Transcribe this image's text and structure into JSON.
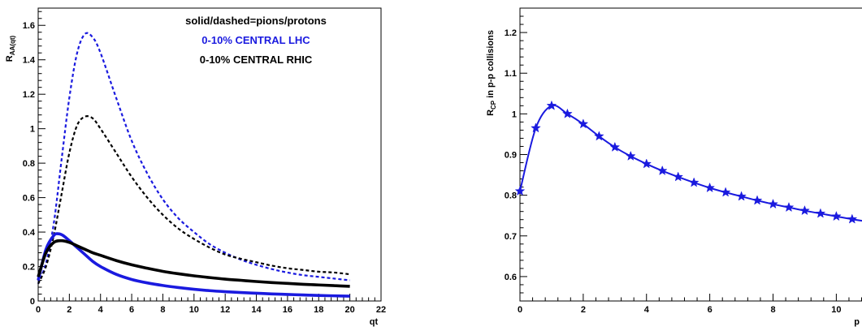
{
  "chart_data": [
    {
      "type": "line",
      "title": "",
      "xlabel": "qt",
      "ylabel": "R_AA(qt)",
      "ylabel_main": "R",
      "ylabel_sub": "AA(qt)",
      "xlim": [
        0,
        22
      ],
      "ylim": [
        0,
        1.7
      ],
      "xticks": [
        0,
        2,
        4,
        6,
        8,
        10,
        12,
        14,
        16,
        18,
        20,
        22
      ],
      "yticks": [
        0,
        0.2,
        0.4,
        0.6,
        0.8,
        1,
        1.2,
        1.4,
        1.6
      ],
      "legend": {
        "line1": "solid/dashed=pions/protons",
        "line2": "0-10% CENTRAL LHC",
        "line3": "0-10% CENTRAL RHIC",
        "color1": "#000000",
        "color2": "#1a1adf",
        "color3": "#000000",
        "placement": "top-right"
      },
      "series": [
        {
          "style": "dashed",
          "color": "#1a1adf",
          "x": [
            0,
            0.5,
            1,
            1.5,
            2,
            2.5,
            3,
            3.5,
            4,
            5,
            6,
            7,
            8,
            9,
            10,
            11,
            12,
            13,
            14,
            15,
            16,
            17,
            18,
            19,
            20
          ],
          "y": [
            0.1,
            0.22,
            0.45,
            0.82,
            1.18,
            1.44,
            1.55,
            1.53,
            1.44,
            1.18,
            0.93,
            0.74,
            0.59,
            0.48,
            0.4,
            0.33,
            0.28,
            0.24,
            0.21,
            0.185,
            0.165,
            0.15,
            0.14,
            0.13,
            0.12
          ]
        },
        {
          "style": "dashed",
          "color": "#000000",
          "x": [
            0,
            0.5,
            1,
            1.5,
            2,
            2.5,
            3,
            3.5,
            4,
            5,
            6,
            7,
            8,
            9,
            10,
            11,
            12,
            13,
            14,
            15,
            16,
            17,
            18,
            19,
            20
          ],
          "y": [
            0.1,
            0.2,
            0.38,
            0.62,
            0.86,
            1.02,
            1.07,
            1.06,
            1.0,
            0.86,
            0.72,
            0.6,
            0.5,
            0.42,
            0.36,
            0.31,
            0.27,
            0.245,
            0.225,
            0.205,
            0.19,
            0.18,
            0.17,
            0.165,
            0.155
          ]
        },
        {
          "style": "solid",
          "color": "#1a1adf",
          "x": [
            0,
            0.5,
            1,
            1.3,
            1.6,
            2,
            2.5,
            3,
            3.5,
            4,
            5,
            6,
            7,
            8,
            9,
            10,
            11,
            12,
            13,
            14,
            15,
            16,
            17,
            18,
            19,
            20
          ],
          "y": [
            0.12,
            0.3,
            0.38,
            0.39,
            0.38,
            0.35,
            0.31,
            0.27,
            0.23,
            0.2,
            0.155,
            0.125,
            0.105,
            0.09,
            0.078,
            0.068,
            0.06,
            0.054,
            0.049,
            0.045,
            0.041,
            0.038,
            0.035,
            0.032,
            0.03,
            0.028
          ]
        },
        {
          "style": "solid",
          "color": "#000000",
          "x": [
            0,
            0.5,
            1,
            1.5,
            2,
            2.5,
            3,
            3.5,
            4,
            5,
            6,
            7,
            8,
            9,
            10,
            11,
            12,
            13,
            14,
            15,
            16,
            17,
            18,
            19,
            20
          ],
          "y": [
            0.14,
            0.28,
            0.34,
            0.35,
            0.34,
            0.32,
            0.3,
            0.28,
            0.265,
            0.235,
            0.21,
            0.19,
            0.172,
            0.158,
            0.146,
            0.136,
            0.127,
            0.12,
            0.113,
            0.107,
            0.102,
            0.097,
            0.093,
            0.089,
            0.085
          ]
        }
      ]
    },
    {
      "type": "line",
      "title": "",
      "xlabel": "p",
      "ylabel": "R_CP in p-p collisions",
      "ylabel_main": "R",
      "ylabel_sub": "CP",
      "ylabel_rest": " in p-p collisions",
      "xlim": [
        0,
        11.3
      ],
      "ylim": [
        0.54,
        1.26
      ],
      "xticks": [
        0,
        2,
        4,
        6,
        8,
        10
      ],
      "yticks": [
        0.6,
        0.7,
        0.8,
        0.9,
        1,
        1.1,
        1.2
      ],
      "series": [
        {
          "style": "solid",
          "color": "#1a1adf",
          "marker": "star",
          "x": [
            0,
            0.5,
            1,
            1.5,
            2,
            2.5,
            3,
            3.5,
            4,
            4.5,
            5,
            5.5,
            6,
            6.5,
            7,
            7.5,
            8,
            8.5,
            9,
            9.5,
            10,
            10.5,
            11
          ],
          "y": [
            0.81,
            0.965,
            1.02,
            1.0,
            0.975,
            0.945,
            0.918,
            0.896,
            0.877,
            0.86,
            0.845,
            0.831,
            0.818,
            0.807,
            0.797,
            0.787,
            0.778,
            0.77,
            0.762,
            0.755,
            0.748,
            0.741,
            0.735
          ]
        }
      ]
    }
  ]
}
